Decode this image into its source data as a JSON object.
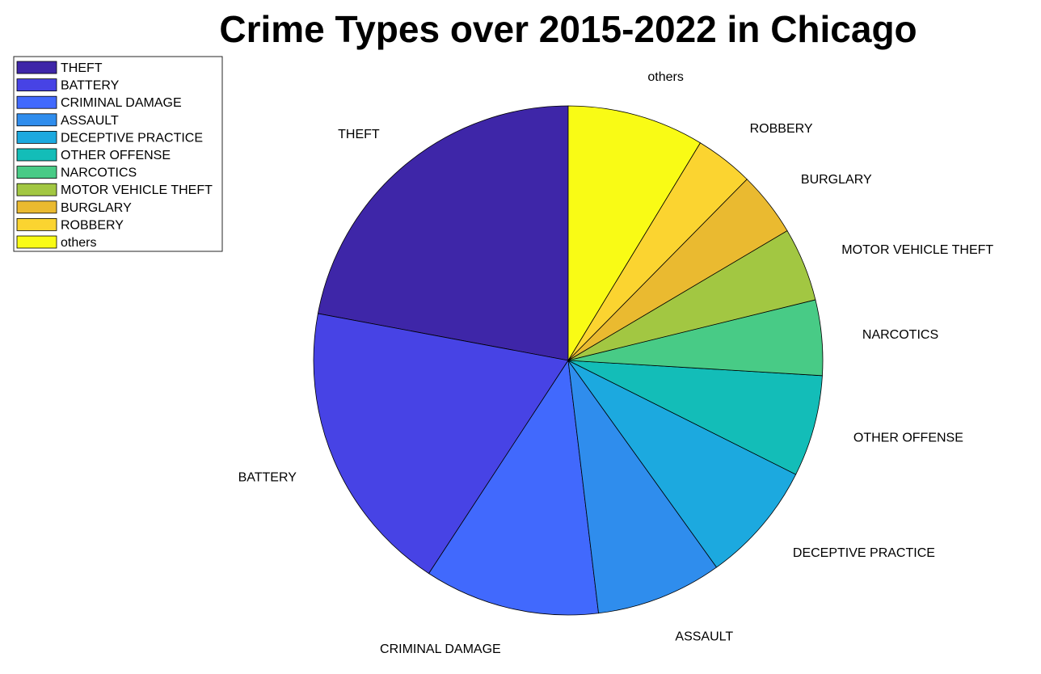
{
  "chart_data": {
    "type": "pie",
    "title": "Crime Types over 2015-2022 in Chicago",
    "legend_position": "top-left",
    "start_angle": "top",
    "direction": "counterclockwise",
    "slices": [
      {
        "label": "THEFT",
        "value": 22.6,
        "color": "#3e26a8"
      },
      {
        "label": "BATTERY",
        "value": 19.2,
        "color": "#4743e5"
      },
      {
        "label": "CRIMINAL DAMAGE",
        "value": 11.4,
        "color": "#4169fd"
      },
      {
        "label": "ASSAULT",
        "value": 8.2,
        "color": "#2f8ded"
      },
      {
        "label": "DECEPTIVE PRACTICE",
        "value": 7.9,
        "color": "#1ca9df"
      },
      {
        "label": "OTHER OFFENSE",
        "value": 6.6,
        "color": "#13bdb8"
      },
      {
        "label": "NARCOTICS",
        "value": 4.9,
        "color": "#48cb86"
      },
      {
        "label": "MOTOR VEHICLE THEFT",
        "value": 4.8,
        "color": "#a2c742"
      },
      {
        "label": "BURGLARY",
        "value": 4.2,
        "color": "#eaba30"
      },
      {
        "label": "ROBBERY",
        "value": 3.8,
        "color": "#fbd430"
      },
      {
        "label": "others",
        "value": 8.9,
        "color": "#f9fb15"
      }
    ]
  }
}
